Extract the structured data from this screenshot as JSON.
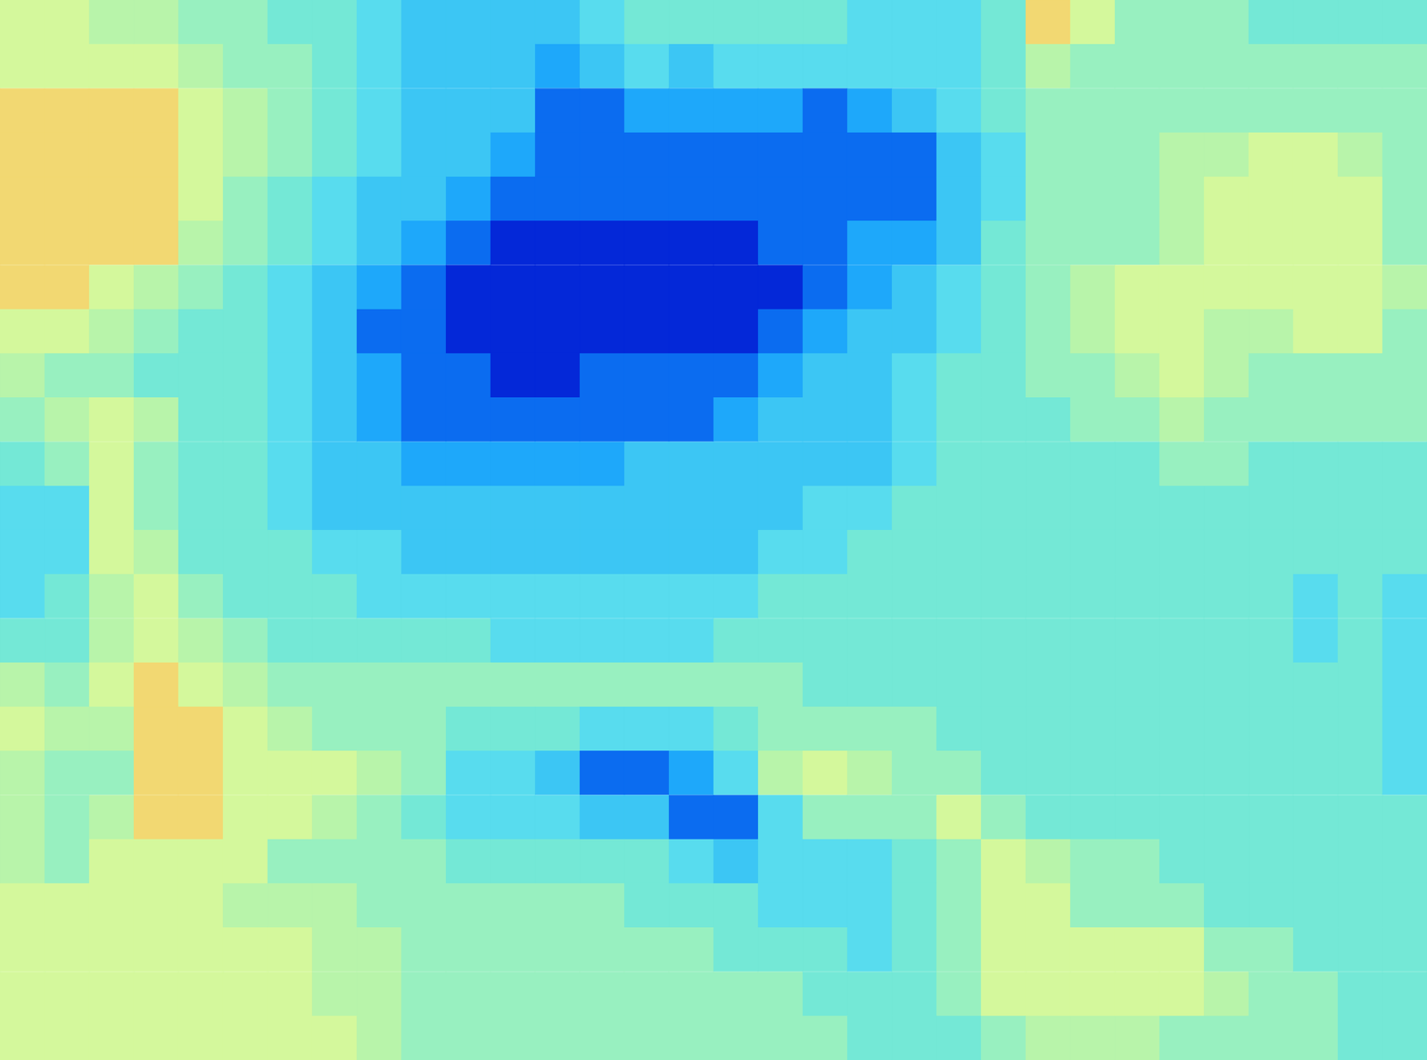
{
  "chart_data": {
    "type": "heatmap",
    "tick_labels": false,
    "grid": false,
    "zlim": [
      0,
      9
    ],
    "cells": [
      [
        8,
        8,
        7,
        7,
        6,
        6,
        5,
        5,
        4,
        3,
        3,
        3,
        3,
        4,
        5,
        5,
        5,
        5,
        5,
        4,
        4,
        4,
        5,
        9,
        8,
        6,
        6,
        6,
        5,
        5,
        5,
        5
      ],
      [
        8,
        8,
        8,
        8,
        7,
        6,
        6,
        5,
        4,
        3,
        3,
        3,
        2,
        3,
        4,
        3,
        4,
        4,
        4,
        4,
        4,
        4,
        5,
        7,
        6,
        6,
        6,
        6,
        6,
        6,
        6,
        6
      ],
      [
        9,
        9,
        9,
        9,
        8,
        7,
        6,
        5,
        4,
        3,
        3,
        3,
        1,
        1,
        2,
        2,
        2,
        2,
        1,
        2,
        3,
        4,
        5,
        6,
        6,
        6,
        6,
        6,
        6,
        6,
        6,
        6
      ],
      [
        9,
        9,
        9,
        9,
        8,
        7,
        6,
        5,
        4,
        3,
        3,
        2,
        1,
        1,
        1,
        1,
        1,
        1,
        1,
        1,
        1,
        3,
        4,
        6,
        6,
        6,
        7,
        7,
        8,
        8,
        7,
        6
      ],
      [
        9,
        9,
        9,
        9,
        8,
        6,
        5,
        4,
        3,
        3,
        2,
        1,
        1,
        1,
        1,
        1,
        1,
        1,
        1,
        1,
        1,
        3,
        4,
        6,
        6,
        6,
        7,
        8,
        8,
        8,
        8,
        6
      ],
      [
        9,
        9,
        9,
        9,
        7,
        6,
        5,
        4,
        3,
        2,
        1,
        0,
        0,
        0,
        0,
        0,
        0,
        1,
        1,
        2,
        2,
        3,
        5,
        6,
        6,
        6,
        7,
        8,
        8,
        8,
        8,
        6
      ],
      [
        9,
        9,
        8,
        7,
        6,
        5,
        4,
        3,
        2,
        1,
        0,
        0,
        0,
        0,
        0,
        0,
        0,
        0,
        1,
        2,
        3,
        4,
        5,
        6,
        7,
        8,
        8,
        8,
        8,
        8,
        8,
        7
      ],
      [
        8,
        8,
        7,
        6,
        5,
        5,
        4,
        3,
        1,
        1,
        0,
        0,
        0,
        0,
        0,
        0,
        0,
        1,
        2,
        3,
        3,
        4,
        5,
        6,
        7,
        8,
        8,
        7,
        7,
        8,
        8,
        6
      ],
      [
        7,
        6,
        6,
        5,
        5,
        5,
        4,
        3,
        2,
        1,
        1,
        0,
        0,
        1,
        1,
        1,
        1,
        2,
        3,
        3,
        4,
        5,
        5,
        6,
        6,
        7,
        8,
        7,
        6,
        6,
        6,
        6
      ],
      [
        6,
        7,
        8,
        7,
        5,
        5,
        4,
        3,
        2,
        1,
        1,
        1,
        1,
        1,
        1,
        1,
        2,
        3,
        3,
        3,
        4,
        5,
        5,
        5,
        6,
        6,
        7,
        6,
        6,
        6,
        6,
        6
      ],
      [
        5,
        6,
        8,
        6,
        5,
        5,
        4,
        3,
        3,
        2,
        2,
        2,
        2,
        2,
        3,
        3,
        3,
        3,
        3,
        3,
        4,
        5,
        5,
        5,
        5,
        5,
        6,
        6,
        5,
        5,
        5,
        5
      ],
      [
        4,
        4,
        8,
        6,
        5,
        5,
        4,
        3,
        3,
        3,
        3,
        3,
        3,
        3,
        3,
        3,
        3,
        3,
        4,
        4,
        5,
        5,
        5,
        5,
        5,
        5,
        5,
        5,
        5,
        5,
        5,
        5
      ],
      [
        4,
        4,
        8,
        7,
        5,
        5,
        5,
        4,
        4,
        3,
        3,
        3,
        3,
        3,
        3,
        3,
        3,
        4,
        4,
        5,
        5,
        5,
        5,
        5,
        5,
        5,
        5,
        5,
        5,
        5,
        5,
        5
      ],
      [
        4,
        5,
        7,
        8,
        6,
        5,
        5,
        5,
        4,
        4,
        4,
        4,
        4,
        4,
        4,
        4,
        4,
        5,
        5,
        5,
        5,
        5,
        5,
        5,
        5,
        5,
        5,
        5,
        5,
        4,
        5,
        4
      ],
      [
        5,
        5,
        7,
        8,
        7,
        6,
        5,
        5,
        5,
        5,
        5,
        4,
        4,
        4,
        4,
        4,
        5,
        5,
        5,
        5,
        5,
        5,
        5,
        5,
        5,
        5,
        5,
        5,
        5,
        4,
        5,
        4
      ],
      [
        7,
        6,
        8,
        9,
        8,
        7,
        6,
        6,
        6,
        6,
        6,
        6,
        6,
        6,
        6,
        6,
        6,
        6,
        5,
        5,
        5,
        5,
        5,
        5,
        5,
        5,
        5,
        5,
        5,
        5,
        5,
        4
      ],
      [
        8,
        7,
        7,
        9,
        9,
        8,
        7,
        6,
        6,
        6,
        5,
        5,
        5,
        4,
        4,
        4,
        5,
        6,
        6,
        6,
        6,
        5,
        5,
        5,
        5,
        5,
        5,
        5,
        5,
        5,
        5,
        4
      ],
      [
        7,
        6,
        6,
        9,
        9,
        8,
        8,
        8,
        7,
        6,
        4,
        4,
        3,
        1,
        1,
        2,
        4,
        7,
        8,
        7,
        6,
        6,
        5,
        5,
        5,
        5,
        5,
        5,
        5,
        5,
        5,
        4
      ],
      [
        7,
        6,
        7,
        9,
        9,
        8,
        8,
        7,
        6,
        5,
        4,
        4,
        4,
        3,
        3,
        1,
        1,
        4,
        6,
        6,
        6,
        8,
        6,
        5,
        5,
        5,
        5,
        5,
        5,
        5,
        5,
        5
      ],
      [
        7,
        6,
        8,
        8,
        8,
        8,
        6,
        6,
        6,
        6,
        5,
        5,
        5,
        5,
        5,
        4,
        3,
        4,
        4,
        4,
        5,
        6,
        8,
        7,
        6,
        6,
        5,
        5,
        5,
        5,
        5,
        5
      ],
      [
        8,
        8,
        8,
        8,
        8,
        7,
        7,
        7,
        6,
        6,
        6,
        6,
        6,
        6,
        5,
        5,
        5,
        4,
        4,
        4,
        5,
        6,
        8,
        8,
        6,
        6,
        6,
        5,
        5,
        5,
        5,
        5
      ],
      [
        8,
        8,
        8,
        8,
        8,
        8,
        8,
        7,
        7,
        6,
        6,
        6,
        6,
        6,
        6,
        6,
        5,
        5,
        5,
        4,
        5,
        6,
        8,
        8,
        8,
        8,
        8,
        6,
        6,
        5,
        5,
        5
      ],
      [
        8,
        8,
        8,
        8,
        8,
        8,
        8,
        7,
        7,
        6,
        6,
        6,
        6,
        6,
        6,
        6,
        6,
        6,
        5,
        5,
        5,
        6,
        8,
        8,
        8,
        8,
        8,
        7,
        6,
        6,
        5,
        5
      ],
      [
        8,
        8,
        8,
        8,
        8,
        8,
        8,
        8,
        7,
        6,
        6,
        6,
        6,
        6,
        6,
        6,
        6,
        6,
        6,
        5,
        5,
        5,
        6,
        7,
        7,
        7,
        6,
        6,
        6,
        6,
        5,
        5
      ]
    ]
  }
}
